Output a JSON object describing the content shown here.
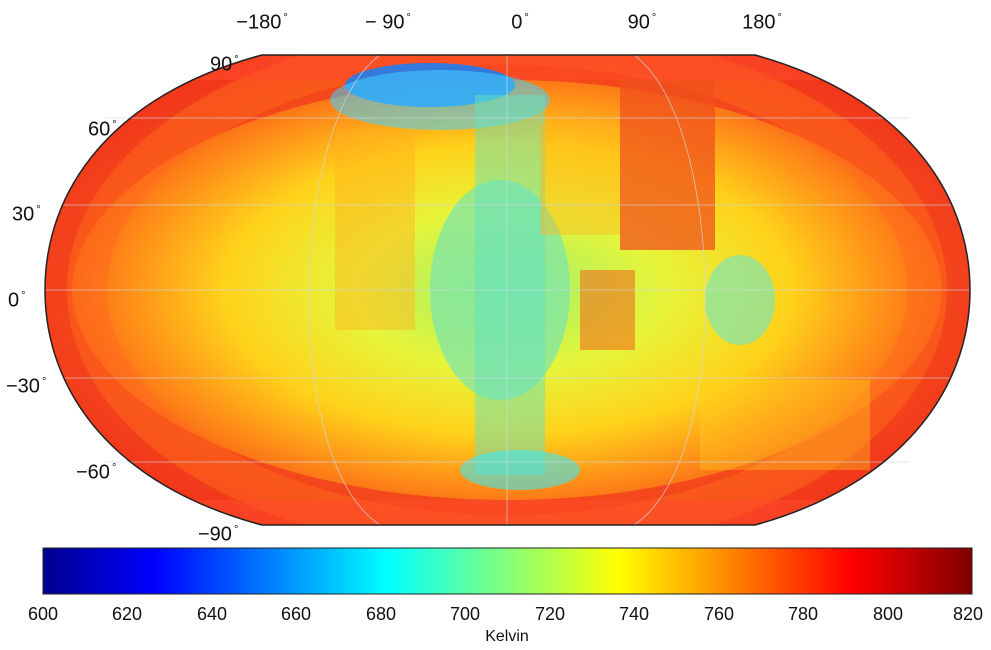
{
  "map": {
    "projection": "Robinson",
    "lon_labels": [
      "−180",
      "− 90",
      "0",
      "90",
      "180"
    ],
    "lat_labels": [
      "90",
      "60",
      "30",
      "0",
      "−30",
      "−60",
      "−90"
    ],
    "degree_symbol": "°"
  },
  "colorbar": {
    "label": "Kelvin",
    "min": 600,
    "max": 820,
    "ticks": [
      "600",
      "620",
      "640",
      "660",
      "680",
      "700",
      "720",
      "740",
      "760",
      "780",
      "800",
      "820"
    ],
    "colormap": "jet",
    "colors": [
      "#00008f",
      "#0000ff",
      "#00ffff",
      "#ffff00",
      "#ff0000",
      "#800000"
    ]
  }
}
